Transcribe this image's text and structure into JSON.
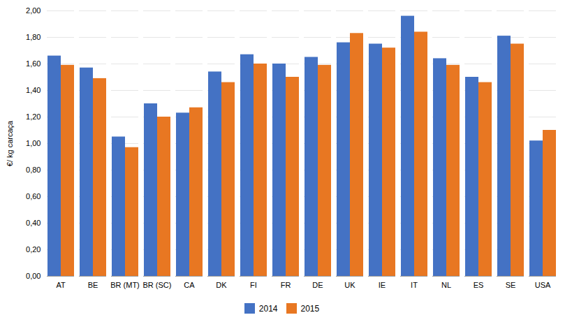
{
  "chart_data": {
    "type": "bar",
    "categories": [
      "AT",
      "BE",
      "BR (MT)",
      "BR (SC)",
      "CA",
      "DK",
      "FI",
      "FR",
      "DE",
      "UK",
      "IE",
      "IT",
      "NL",
      "ES",
      "SE",
      "USA"
    ],
    "series": [
      {
        "name": "2014",
        "color": "#4472C4",
        "values": [
          1.66,
          1.57,
          1.05,
          1.3,
          1.23,
          1.54,
          1.67,
          1.6,
          1.65,
          1.76,
          1.75,
          1.96,
          1.64,
          1.5,
          1.81,
          1.02
        ]
      },
      {
        "name": "2015",
        "color": "#E87722",
        "values": [
          1.59,
          1.49,
          0.97,
          1.2,
          1.27,
          1.46,
          1.6,
          1.5,
          1.59,
          1.83,
          1.72,
          1.84,
          1.59,
          1.46,
          1.75,
          1.1
        ]
      }
    ],
    "ylabel": "€/ kg carcaça",
    "ylim": [
      0,
      2.0
    ],
    "yticks": [
      {
        "value": 0.0,
        "label": "0,00"
      },
      {
        "value": 0.2,
        "label": "0,20"
      },
      {
        "value": 0.4,
        "label": "0,40"
      },
      {
        "value": 0.6,
        "label": "0,60"
      },
      {
        "value": 0.8,
        "label": "0,80"
      },
      {
        "value": 1.0,
        "label": "1,00"
      },
      {
        "value": 1.2,
        "label": "1,20"
      },
      {
        "value": 1.4,
        "label": "1,40"
      },
      {
        "value": 1.6,
        "label": "1,60"
      },
      {
        "value": 1.8,
        "label": "1,80"
      },
      {
        "value": 2.0,
        "label": "2,00"
      }
    ],
    "grid": true,
    "legend": "bottom"
  }
}
